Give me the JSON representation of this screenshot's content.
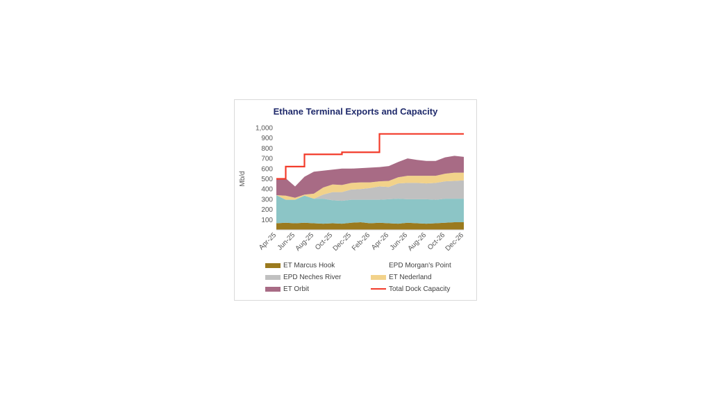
{
  "chart_data": {
    "type": "area",
    "title": "Ethane Terminal Exports and Capacity",
    "ylabel": "Mb/d",
    "xlabel": "",
    "ylim": [
      0,
      1000
    ],
    "yticks": [
      100,
      200,
      300,
      400,
      500,
      600,
      700,
      800,
      900,
      1000
    ],
    "ytick_labels": [
      "100",
      "200",
      "300",
      "400",
      "500",
      "600",
      "700",
      "800",
      "900",
      "1,000"
    ],
    "x": [
      "Apr-25",
      "May-25",
      "Jun-25",
      "Jul-25",
      "Aug-25",
      "Sep-25",
      "Oct-25",
      "Nov-25",
      "Dec-25",
      "Jan-26",
      "Feb-26",
      "Mar-26",
      "Apr-26",
      "May-26",
      "Jun-26",
      "Jul-26",
      "Aug-26",
      "Sep-26",
      "Oct-26",
      "Nov-26",
      "Dec-26"
    ],
    "xtick_labels": [
      "Apr-25",
      "Jun-25",
      "Aug-25",
      "Oct-25",
      "Dec-25",
      "Feb-26",
      "Apr-26",
      "Jun-26",
      "Aug-26",
      "Oct-26",
      "Dec-26"
    ],
    "grid": false,
    "legend_position": "bottom",
    "stacked": true,
    "series": [
      {
        "name": "ET Marcus Hook",
        "color": "#9b7a1e",
        "values": [
          65,
          70,
          65,
          70,
          65,
          60,
          65,
          60,
          70,
          75,
          65,
          70,
          65,
          60,
          70,
          65,
          60,
          65,
          70,
          75,
          75
        ]
      },
      {
        "name": "EPD Morgan's Point",
        "color": "#8cc5c6",
        "values": [
          275,
          225,
          230,
          265,
          240,
          245,
          225,
          225,
          225,
          220,
          230,
          225,
          235,
          245,
          230,
          235,
          240,
          230,
          235,
          230,
          230
        ]
      },
      {
        "name": "EPD Neches River",
        "color": "#c0c0c0",
        "values": [
          0,
          0,
          0,
          0,
          0,
          40,
          80,
          85,
          100,
          105,
          115,
          130,
          120,
          150,
          160,
          160,
          155,
          165,
          170,
          175,
          180
        ]
      },
      {
        "name": "ET Nederland",
        "color": "#f2d28a",
        "values": [
          0,
          40,
          20,
          10,
          50,
          70,
          75,
          70,
          65,
          65,
          55,
          50,
          60,
          60,
          70,
          70,
          75,
          70,
          75,
          80,
          75
        ]
      },
      {
        "name": "ET Orbit",
        "color": "#a86b85",
        "values": [
          160,
          170,
          110,
          175,
          215,
          165,
          145,
          160,
          140,
          140,
          145,
          140,
          145,
          150,
          170,
          155,
          145,
          145,
          160,
          165,
          155
        ]
      }
    ],
    "line_series": [
      {
        "name": "Total Dock Capacity",
        "color": "#f23b2a",
        "values": [
          500,
          620,
          620,
          740,
          740,
          740,
          740,
          760,
          760,
          760,
          760,
          940,
          940,
          940,
          940,
          940,
          940,
          940,
          940,
          940,
          940
        ],
        "step": true
      }
    ]
  }
}
